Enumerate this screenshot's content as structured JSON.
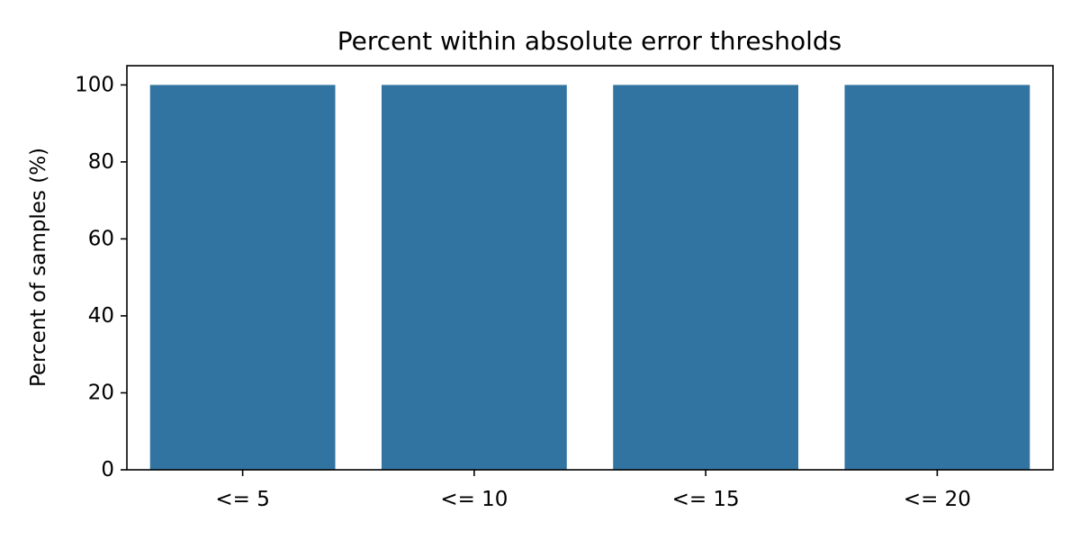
{
  "chart_data": {
    "type": "bar",
    "title": "Percent within absolute error thresholds",
    "xlabel": "",
    "ylabel": "Percent of samples (%)",
    "categories": [
      "<= 5",
      "<= 10",
      "<= 15",
      "<= 20"
    ],
    "values": [
      100,
      100,
      100,
      100
    ],
    "ylim": [
      0,
      105
    ],
    "yticks": [
      0,
      20,
      40,
      60,
      80,
      100
    ],
    "grid": false,
    "legend": "none",
    "bar_color": "#3274a1"
  }
}
